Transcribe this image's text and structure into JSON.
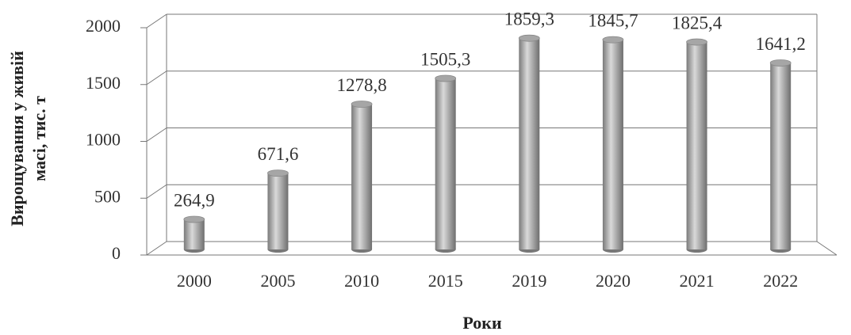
{
  "chart_data": {
    "type": "bar",
    "y_label": [
      "Вирощування у живій",
      "масі, тис. т"
    ],
    "x_label": "Роки",
    "categories": [
      "2000",
      "2005",
      "2010",
      "2015",
      "2019",
      "2020",
      "2021",
      "2022"
    ],
    "values": [
      264.9,
      671.6,
      1278.8,
      1505.3,
      1859.3,
      1845.7,
      1825.4,
      1641.2
    ],
    "value_labels": [
      "264,9",
      "671,6",
      "1278,8",
      "1505,3",
      "1859,3",
      "1845,7",
      "1825,4",
      "1641,2"
    ],
    "color": "#a6a6a6",
    "ylim": [
      0,
      2000
    ],
    "yticks": [
      0,
      500,
      1000,
      1500,
      2000
    ],
    "grid": true
  }
}
